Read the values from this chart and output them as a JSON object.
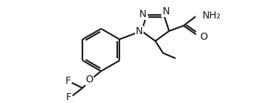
{
  "bg_color": "#ffffff",
  "line_color": "#1a1a1a",
  "bond_width": 1.6,
  "font_size_atom": 10,
  "figsize": [
    3.66,
    1.45
  ],
  "dpi": 100,
  "xlim": [
    0,
    10
  ],
  "ylim": [
    0,
    4.0
  ]
}
